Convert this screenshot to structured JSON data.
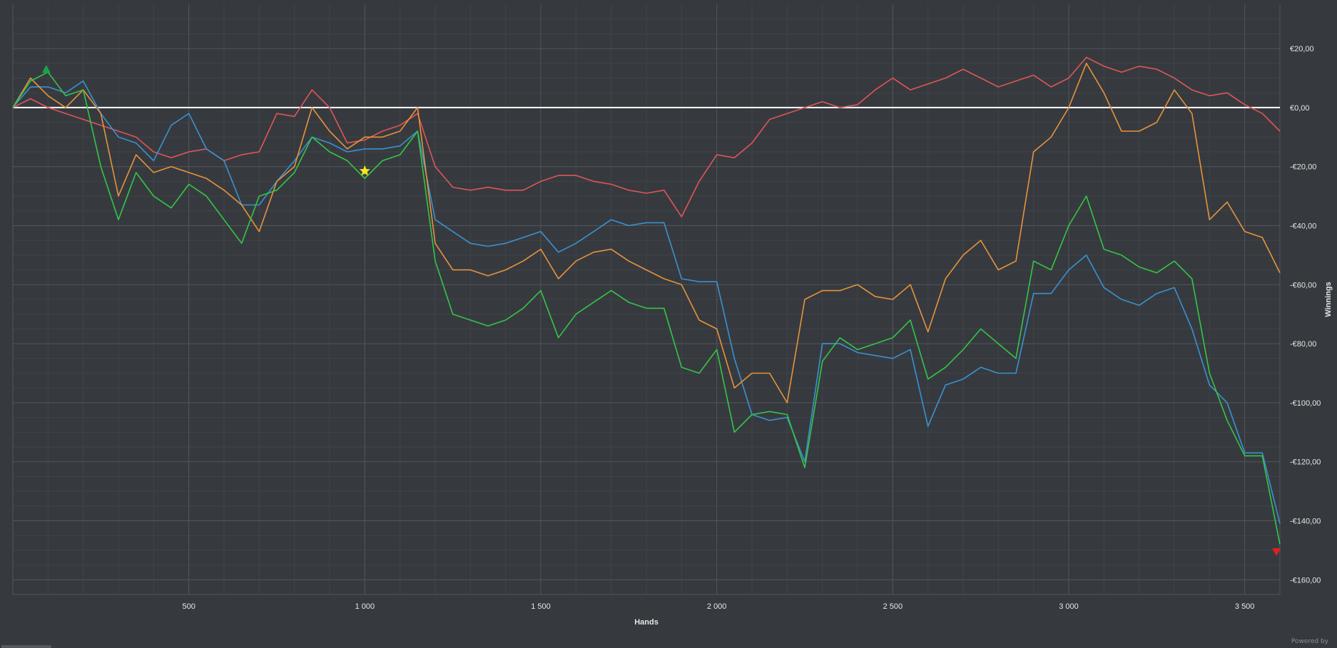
{
  "footer": {
    "powered_by": "Powered by"
  },
  "colors": {
    "background": "#363a3f",
    "grid_major": "#53575d",
    "grid_minor": "#404449",
    "zero_line": "#ffffff",
    "axis_text": "#e6e6e6"
  },
  "chart_data": {
    "type": "line",
    "xlabel": "Hands",
    "ylabel": "Winnings",
    "xlim": [
      0,
      3600
    ],
    "ylim": [
      -165,
      35
    ],
    "x_ticks": [
      500,
      1000,
      1500,
      2000,
      2500,
      3000,
      3500
    ],
    "x_tick_labels": [
      "500",
      "1 000",
      "1 500",
      "2 000",
      "2 500",
      "3 000",
      "3 500"
    ],
    "y_ticks": [
      20,
      0,
      -20,
      -40,
      -60,
      -80,
      -100,
      -120,
      -140,
      -160
    ],
    "y_tick_labels": [
      "€20,00",
      "€0,00",
      "-€20,00",
      "-€40,00",
      "-€60,00",
      "-€80,00",
      "-€100,00",
      "-€120,00",
      "-€140,00",
      "-€160,00"
    ],
    "y_axis_side": "right",
    "grid": true,
    "zero_line": true,
    "markers": [
      {
        "type": "triangle-up",
        "x": 95,
        "y": 13,
        "color": "#16a34a"
      },
      {
        "type": "star",
        "x": 1000,
        "y": -21.5,
        "color": "#f4ea1c"
      },
      {
        "type": "triangle-down",
        "x": 3590,
        "y": -150.5,
        "color": "#e02020"
      }
    ],
    "series": [
      {
        "color": "#e05555",
        "x": [
          0,
          50,
          100,
          150,
          200,
          250,
          300,
          350,
          400,
          450,
          500,
          550,
          600,
          650,
          700,
          750,
          800,
          850,
          900,
          950,
          1000,
          1050,
          1100,
          1150,
          1200,
          1250,
          1300,
          1350,
          1400,
          1450,
          1500,
          1550,
          1600,
          1650,
          1700,
          1750,
          1800,
          1850,
          1900,
          1950,
          2000,
          2050,
          2100,
          2150,
          2200,
          2250,
          2300,
          2350,
          2400,
          2450,
          2500,
          2550,
          2600,
          2650,
          2700,
          2750,
          2800,
          2850,
          2900,
          2950,
          3000,
          3050,
          3100,
          3150,
          3200,
          3250,
          3300,
          3350,
          3400,
          3450,
          3500,
          3550,
          3600
        ],
        "values": [
          0,
          3,
          0,
          -2,
          -4,
          -6,
          -8,
          -10,
          -15,
          -17,
          -15,
          -14,
          -18,
          -16,
          -15,
          -2,
          -3,
          6,
          0,
          -12,
          -11,
          -8,
          -6,
          -2,
          -20,
          -27,
          -28,
          -27,
          -28,
          -28,
          -25,
          -23,
          -23,
          -25,
          -26,
          -28,
          -29,
          -28,
          -37,
          -25,
          -16,
          -17,
          -12,
          -4,
          -2,
          0,
          2,
          0,
          1,
          6,
          10,
          6,
          8,
          10,
          13,
          10,
          7,
          9,
          11,
          7,
          10,
          17,
          14,
          12,
          14,
          13,
          10,
          6,
          4,
          5,
          1,
          -2,
          -8
        ]
      },
      {
        "color": "#3a91d0",
        "x": [
          0,
          50,
          100,
          150,
          200,
          250,
          300,
          350,
          400,
          450,
          500,
          550,
          600,
          650,
          700,
          750,
          800,
          850,
          900,
          950,
          1000,
          1050,
          1100,
          1150,
          1200,
          1250,
          1300,
          1350,
          1400,
          1450,
          1500,
          1550,
          1600,
          1650,
          1700,
          1750,
          1800,
          1850,
          1900,
          1950,
          2000,
          2050,
          2100,
          2150,
          2200,
          2250,
          2300,
          2350,
          2400,
          2450,
          2500,
          2550,
          2600,
          2650,
          2700,
          2750,
          2800,
          2850,
          2900,
          2950,
          3000,
          3050,
          3100,
          3150,
          3200,
          3250,
          3300,
          3350,
          3400,
          3450,
          3500,
          3550,
          3600
        ],
        "values": [
          0,
          7,
          7,
          5,
          9,
          -2,
          -10,
          -12,
          -18,
          -6,
          -2,
          -14,
          -18,
          -33,
          -33,
          -25,
          -18,
          -10,
          -12,
          -15,
          -14,
          -14,
          -13,
          -8,
          -38,
          -42,
          -46,
          -47,
          -46,
          -44,
          -42,
          -49,
          -46,
          -42,
          -38,
          -40,
          -39,
          -39,
          -58,
          -59,
          -59,
          -85,
          -104,
          -106,
          -105,
          -120,
          -80,
          -80,
          -83,
          -84,
          -85,
          -82,
          -108,
          -94,
          -92,
          -88,
          -90,
          -90,
          -63,
          -63,
          -55,
          -50,
          -61,
          -65,
          -67,
          -63,
          -61,
          -75,
          -94,
          -100,
          -117,
          -117,
          -141
        ]
      },
      {
        "color": "#e8923a",
        "x": [
          0,
          50,
          100,
          150,
          200,
          250,
          300,
          350,
          400,
          450,
          500,
          550,
          600,
          650,
          700,
          750,
          800,
          850,
          900,
          950,
          1000,
          1050,
          1100,
          1150,
          1200,
          1250,
          1300,
          1350,
          1400,
          1450,
          1500,
          1550,
          1600,
          1650,
          1700,
          1750,
          1800,
          1850,
          1900,
          1950,
          2000,
          2050,
          2100,
          2150,
          2200,
          2250,
          2300,
          2350,
          2400,
          2450,
          2500,
          2550,
          2600,
          2650,
          2700,
          2750,
          2800,
          2850,
          2900,
          2950,
          3000,
          3050,
          3100,
          3150,
          3200,
          3250,
          3300,
          3350,
          3400,
          3450,
          3500,
          3550,
          3600
        ],
        "values": [
          0,
          10,
          4,
          0,
          6,
          -2,
          -30,
          -16,
          -22,
          -20,
          -22,
          -24,
          -28,
          -33,
          -42,
          -25,
          -20,
          0,
          -8,
          -14,
          -10,
          -10,
          -8,
          0,
          -46,
          -55,
          -55,
          -57,
          -55,
          -52,
          -48,
          -58,
          -52,
          -49,
          -48,
          -52,
          -55,
          -58,
          -60,
          -72,
          -75,
          -95,
          -90,
          -90,
          -100,
          -65,
          -62,
          -62,
          -60,
          -64,
          -65,
          -60,
          -76,
          -58,
          -50,
          -45,
          -55,
          -52,
          -15,
          -10,
          0,
          15,
          5,
          -8,
          -8,
          -5,
          6,
          -2,
          -38,
          -32,
          -42,
          -44,
          -56
        ]
      },
      {
        "color": "#35c545",
        "x": [
          0,
          50,
          100,
          150,
          200,
          250,
          300,
          350,
          400,
          450,
          500,
          550,
          600,
          650,
          700,
          750,
          800,
          850,
          900,
          950,
          1000,
          1050,
          1100,
          1150,
          1200,
          1250,
          1300,
          1350,
          1400,
          1450,
          1500,
          1550,
          1600,
          1650,
          1700,
          1750,
          1800,
          1850,
          1900,
          1950,
          2000,
          2050,
          2100,
          2150,
          2200,
          2250,
          2300,
          2350,
          2400,
          2450,
          2500,
          2550,
          2600,
          2650,
          2700,
          2750,
          2800,
          2850,
          2900,
          2950,
          3000,
          3050,
          3100,
          3150,
          3200,
          3250,
          3300,
          3350,
          3400,
          3450,
          3500,
          3550,
          3600
        ],
        "values": [
          0,
          9,
          12,
          4,
          6,
          -20,
          -38,
          -22,
          -30,
          -34,
          -26,
          -30,
          -38,
          -46,
          -30,
          -28,
          -22,
          -10,
          -15,
          -18,
          -24,
          -18,
          -16,
          -8,
          -52,
          -70,
          -72,
          -74,
          -72,
          -68,
          -62,
          -78,
          -70,
          -66,
          -62,
          -66,
          -68,
          -68,
          -88,
          -90,
          -82,
          -110,
          -104,
          -103,
          -104,
          -122,
          -86,
          -78,
          -82,
          -80,
          -78,
          -72,
          -92,
          -88,
          -82,
          -75,
          -80,
          -85,
          -52,
          -55,
          -40,
          -30,
          -48,
          -50,
          -54,
          -56,
          -52,
          -58,
          -90,
          -106,
          -118,
          -118,
          -148
        ]
      }
    ]
  }
}
